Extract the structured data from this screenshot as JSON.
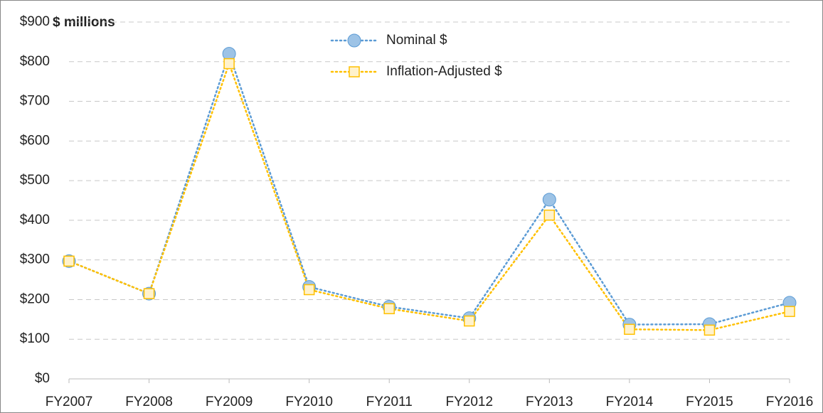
{
  "chart_data": {
    "type": "line",
    "y_axis_label": "$ millions",
    "categories": [
      "FY2007",
      "FY2008",
      "FY2009",
      "FY2010",
      "FY2011",
      "FY2012",
      "FY2013",
      "FY2014",
      "FY2015",
      "FY2016"
    ],
    "series": [
      {
        "name": "Nominal $",
        "color": "#5b9bd5",
        "marker": "circle",
        "values": [
          297,
          215,
          820,
          232,
          182,
          153,
          452,
          137,
          138,
          192
        ]
      },
      {
        "name": "Inflation-Adjusted $",
        "color": "#ffc000",
        "marker": "square",
        "values": [
          297,
          215,
          795,
          225,
          177,
          146,
          413,
          125,
          123,
          170
        ]
      }
    ],
    "ylim": [
      0,
      900
    ],
    "yticks": [
      {
        "value": 0,
        "label": "$0"
      },
      {
        "value": 100,
        "label": "$100"
      },
      {
        "value": 200,
        "label": "$200"
      },
      {
        "value": 300,
        "label": "$300"
      },
      {
        "value": 400,
        "label": "$400"
      },
      {
        "value": 500,
        "label": "$500"
      },
      {
        "value": 600,
        "label": "$600"
      },
      {
        "value": 700,
        "label": "$700"
      },
      {
        "value": 800,
        "label": "$800"
      },
      {
        "value": 900,
        "label": "$900"
      }
    ],
    "grid": true,
    "legend": "top"
  }
}
